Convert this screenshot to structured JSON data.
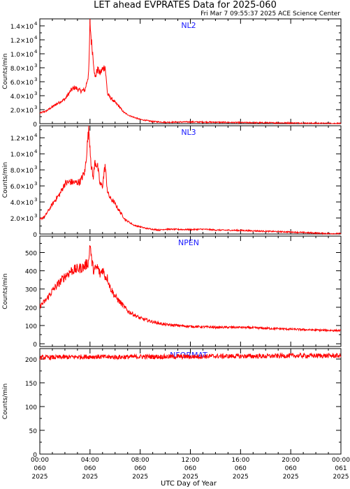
{
  "title": "LET ahead EVPRATES Data for 2025-060",
  "timestamp": "Fri Mar  7 09:55:37 2025 ACE Science Center",
  "xlabel": "UTC Day of Year",
  "x_ticks": [
    {
      "l1": "00:00",
      "l2": "060",
      "l3": "2025"
    },
    {
      "l1": "04:00",
      "l2": "060",
      "l3": "2025"
    },
    {
      "l1": "08:00",
      "l2": "060",
      "l3": "2025"
    },
    {
      "l1": "12:00",
      "l2": "060",
      "l3": "2025"
    },
    {
      "l1": "16:00",
      "l2": "060",
      "l3": "2025"
    },
    {
      "l1": "20:00",
      "l2": "060",
      "l3": "2025"
    },
    {
      "l1": "00:00",
      "l2": "061",
      "l3": "2025"
    }
  ],
  "line_color": "#ff0000",
  "label_color": "#1a1aff",
  "chart_data": [
    {
      "type": "line",
      "series_label": "NL2",
      "ylabel": "Counts/min",
      "ylim": [
        0,
        15000
      ],
      "x_unit": "hours",
      "xlim": [
        0,
        24
      ],
      "y_ticks": [
        {
          "v": 0,
          "m": "0",
          "e": ""
        },
        {
          "v": 2000,
          "m": "2.0×10",
          "e": "3"
        },
        {
          "v": 4000,
          "m": "4.0×10",
          "e": "3"
        },
        {
          "v": 6000,
          "m": "6.0×10",
          "e": "3"
        },
        {
          "v": 8000,
          "m": "8.0×10",
          "e": "3"
        },
        {
          "v": 10000,
          "m": "1.0×10",
          "e": "4"
        },
        {
          "v": 12000,
          "m": "1.2×10",
          "e": "4"
        },
        {
          "v": 14000,
          "m": "1.4×10",
          "e": "4"
        }
      ],
      "x": [
        0,
        0.5,
        1,
        1.5,
        2,
        2.5,
        2.8,
        3.2,
        3.6,
        3.9,
        4.0,
        4.1,
        4.25,
        4.4,
        4.6,
        4.8,
        5.0,
        5.2,
        5.4,
        5.6,
        5.9,
        6.3,
        6.7,
        7.2,
        8,
        9,
        10,
        12,
        14,
        16,
        18,
        20,
        22,
        23,
        24
      ],
      "y": [
        1500,
        1800,
        2400,
        3000,
        3500,
        4800,
        5200,
        4700,
        4800,
        7200,
        14500,
        12000,
        9500,
        6500,
        7800,
        7200,
        7800,
        8200,
        4200,
        3800,
        3200,
        2500,
        1600,
        1100,
        600,
        300,
        200,
        250,
        200,
        150,
        120,
        100,
        60,
        40,
        30
      ]
    },
    {
      "type": "line",
      "series_label": "NL3",
      "ylabel": "Counts/min",
      "ylim": [
        0,
        13500
      ],
      "x_unit": "hours",
      "xlim": [
        0,
        24
      ],
      "y_ticks": [
        {
          "v": 0,
          "m": "0",
          "e": ""
        },
        {
          "v": 2000,
          "m": "2.0×10",
          "e": "3"
        },
        {
          "v": 4000,
          "m": "4.0×10",
          "e": "3"
        },
        {
          "v": 6000,
          "m": "6.0×10",
          "e": "3"
        },
        {
          "v": 8000,
          "m": "8.0×10",
          "e": "3"
        },
        {
          "v": 10000,
          "m": "1.0×10",
          "e": "4"
        },
        {
          "v": 12000,
          "m": "1.2×10",
          "e": "4"
        }
      ],
      "x": [
        0,
        0.4,
        0.8,
        1.2,
        1.6,
        2.0,
        2.4,
        2.8,
        3.2,
        3.6,
        3.9,
        4.0,
        4.1,
        4.25,
        4.4,
        4.6,
        4.8,
        5.0,
        5.2,
        5.4,
        5.6,
        5.9,
        6.3,
        6.8,
        7.5,
        8.5,
        9.5,
        10,
        12,
        13,
        14,
        16,
        18,
        20,
        22,
        23,
        24
      ],
      "y": [
        1800,
        2200,
        3200,
        4200,
        5000,
        6300,
        6500,
        6400,
        6500,
        7800,
        13200,
        11000,
        8500,
        7000,
        9000,
        8500,
        6200,
        6000,
        8600,
        5200,
        4500,
        4000,
        3000,
        1800,
        1100,
        700,
        500,
        600,
        550,
        600,
        500,
        450,
        350,
        250,
        120,
        60,
        50
      ]
    },
    {
      "type": "line",
      "series_label": "NPEN",
      "ylabel": "Counts/min",
      "ylim": [
        -15,
        590
      ],
      "x_unit": "hours",
      "xlim": [
        0,
        24
      ],
      "y_ticks": [
        {
          "v": 0,
          "m": "0",
          "e": ""
        },
        {
          "v": 100,
          "m": "100",
          "e": ""
        },
        {
          "v": 200,
          "m": "200",
          "e": ""
        },
        {
          "v": 300,
          "m": "300",
          "e": ""
        },
        {
          "v": 400,
          "m": "400",
          "e": ""
        },
        {
          "v": 500,
          "m": "500",
          "e": ""
        }
      ],
      "x": [
        0,
        0.5,
        1,
        1.5,
        2,
        2.5,
        3,
        3.5,
        3.9,
        4.0,
        4.1,
        4.3,
        4.6,
        4.8,
        5.0,
        5.2,
        5.4,
        5.6,
        6,
        6.5,
        7,
        8,
        9,
        10,
        12,
        14,
        16,
        18,
        20,
        22,
        24
      ],
      "y": [
        205,
        240,
        290,
        330,
        370,
        400,
        410,
        420,
        450,
        560,
        470,
        400,
        420,
        380,
        410,
        370,
        360,
        310,
        260,
        220,
        180,
        140,
        120,
        105,
        95,
        90,
        90,
        85,
        80,
        75,
        72
      ]
    },
    {
      "type": "line",
      "series_label": "NFORMAT",
      "ylabel": "Counts/min",
      "ylim": [
        0,
        222
      ],
      "x_unit": "hours",
      "xlim": [
        0,
        24
      ],
      "y_ticks": [
        {
          "v": 0,
          "m": "0",
          "e": ""
        },
        {
          "v": 50,
          "m": "50",
          "e": ""
        },
        {
          "v": 100,
          "m": "100",
          "e": ""
        },
        {
          "v": 150,
          "m": "150",
          "e": ""
        },
        {
          "v": 200,
          "m": "200",
          "e": ""
        }
      ],
      "x": [
        0,
        2,
        4,
        6,
        8,
        10,
        12,
        14,
        16,
        18,
        20,
        22,
        24
      ],
      "y": [
        203,
        204,
        205,
        204,
        205,
        205,
        205,
        206,
        206,
        206,
        207,
        207,
        207
      ]
    }
  ]
}
